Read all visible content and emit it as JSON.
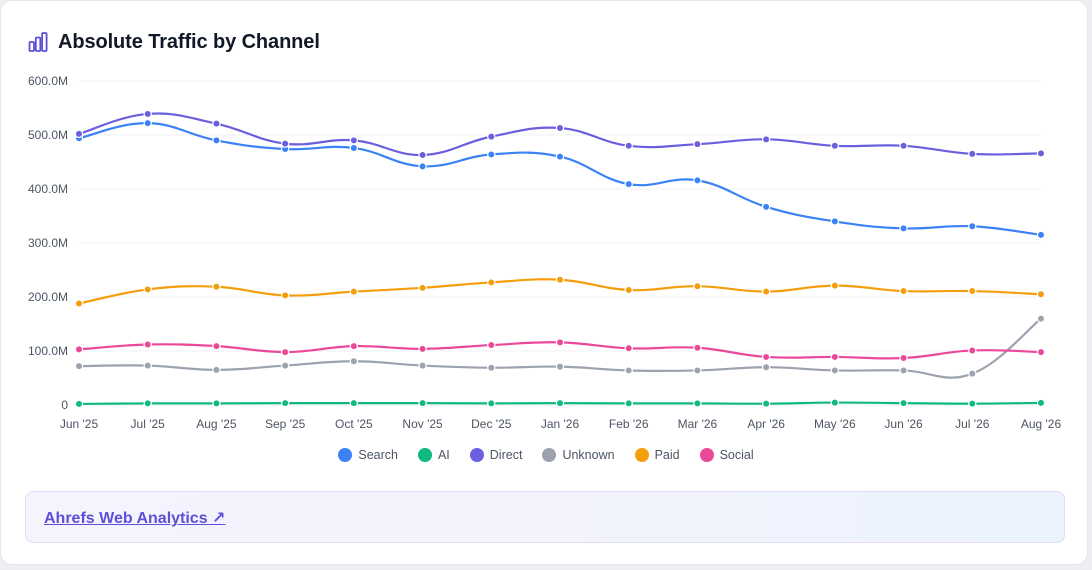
{
  "header": {
    "title": "Absolute Traffic by Channel",
    "icon": "bar-chart-icon",
    "icon_color": "#5b50d6"
  },
  "footer": {
    "link_label": "Ahrefs Web Analytics ↗",
    "link_color": "#5b50d6"
  },
  "chart_data": {
    "type": "line",
    "title": "Absolute Traffic by Channel",
    "xlabel": "",
    "ylabel": "",
    "ylim": [
      0,
      600000000
    ],
    "y_ticks": [
      {
        "value": 0,
        "label": "0"
      },
      {
        "value": 100000000,
        "label": "100.0M"
      },
      {
        "value": 200000000,
        "label": "200.0M"
      },
      {
        "value": 300000000,
        "label": "300.0M"
      },
      {
        "value": 400000000,
        "label": "400.0M"
      },
      {
        "value": 500000000,
        "label": "500.0M"
      },
      {
        "value": 600000000,
        "label": "600.0M"
      }
    ],
    "grid": true,
    "legend_position": "bottom-center",
    "categories": [
      "Jun '25",
      "Jul '25",
      "Aug '25",
      "Sep '25",
      "Oct '25",
      "Nov '25",
      "Dec '25",
      "Jan '26",
      "Feb '26",
      "Mar '26",
      "Apr '26",
      "May '26",
      "Jun '26",
      "Jul '26",
      "Aug '26"
    ],
    "series": [
      {
        "name": "Search",
        "color": "#3b82f6",
        "values": [
          494000000,
          522000000,
          490000000,
          474000000,
          476000000,
          442000000,
          464000000,
          460000000,
          409000000,
          416000000,
          367000000,
          340000000,
          327000000,
          331000000,
          315000000
        ]
      },
      {
        "name": "AI",
        "color": "#10b981",
        "values": [
          2000000,
          3000000,
          3000000,
          3500000,
          3500000,
          3500000,
          3000000,
          3500000,
          3000000,
          3000000,
          2500000,
          4500000,
          3500000,
          2500000,
          4000000
        ]
      },
      {
        "name": "Direct",
        "color": "#6b5fe0",
        "values": [
          502000000,
          539000000,
          521000000,
          484000000,
          490000000,
          463000000,
          497000000,
          513000000,
          480000000,
          483000000,
          492000000,
          480000000,
          480000000,
          465000000,
          466000000
        ]
      },
      {
        "name": "Unknown",
        "color": "#9ca3af",
        "values": [
          72000000,
          73000000,
          65000000,
          73000000,
          81000000,
          73000000,
          69000000,
          71000000,
          64000000,
          64000000,
          70000000,
          64000000,
          64000000,
          58000000,
          160000000
        ]
      },
      {
        "name": "Paid",
        "color": "#f59e0b",
        "values": [
          188000000,
          214000000,
          219000000,
          203000000,
          210000000,
          217000000,
          227000000,
          232000000,
          213000000,
          220000000,
          210000000,
          221000000,
          211000000,
          211000000,
          205000000
        ]
      },
      {
        "name": "Social",
        "color": "#ec4899",
        "values": [
          103000000,
          112000000,
          109000000,
          98000000,
          109000000,
          104000000,
          111000000,
          116000000,
          105000000,
          106000000,
          89000000,
          89000000,
          87000000,
          101000000,
          98000000
        ]
      }
    ]
  }
}
